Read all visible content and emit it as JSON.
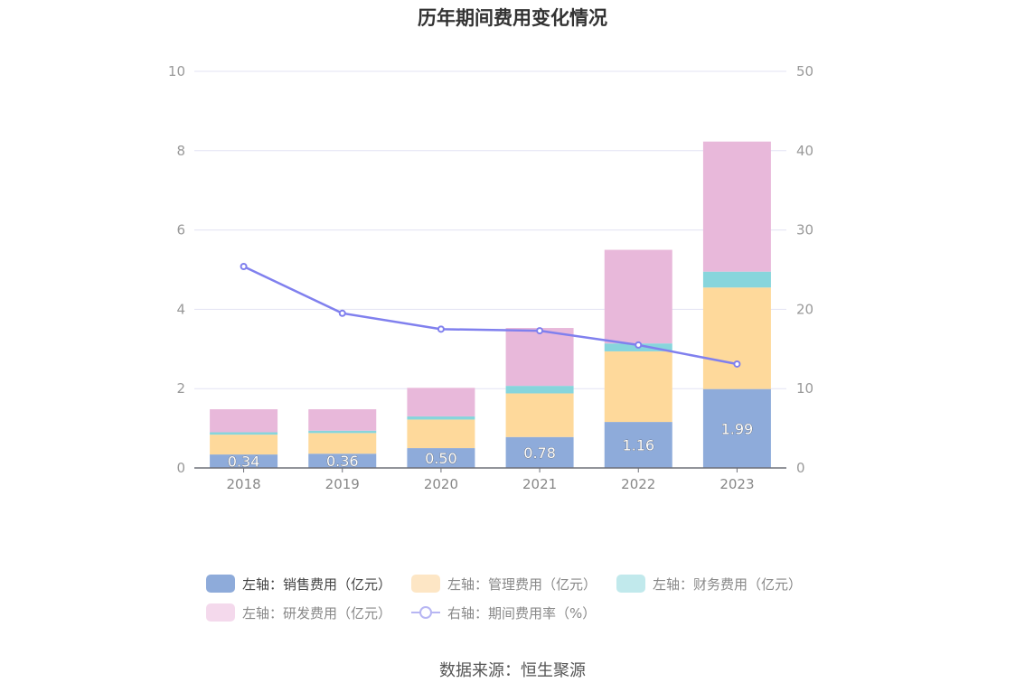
{
  "chart_data": {
    "type": "bar",
    "title": "历年期间费用变化情况",
    "categories": [
      "2018",
      "2019",
      "2020",
      "2021",
      "2022",
      "2023"
    ],
    "stacked": true,
    "series": [
      {
        "name": "左轴：销售费用（亿元）",
        "axis": "left",
        "color": "#8eabda",
        "values": [
          0.34,
          0.36,
          0.5,
          0.78,
          1.16,
          1.99
        ],
        "labels": [
          "0.34",
          "0.36",
          "0.50",
          "0.78",
          "1.16",
          "1.99"
        ]
      },
      {
        "name": "左轴：管理费用（亿元）",
        "axis": "left",
        "color": "#fed99b",
        "values": [
          0.5,
          0.52,
          0.72,
          1.1,
          1.78,
          2.56
        ]
      },
      {
        "name": "左轴：财务费用（亿元）",
        "axis": "left",
        "color": "#87d5dc",
        "values": [
          0.06,
          0.06,
          0.08,
          0.19,
          0.2,
          0.4
        ]
      },
      {
        "name": "左轴：研发费用（亿元）",
        "axis": "left",
        "color": "#e8b8da",
        "values": [
          0.58,
          0.54,
          0.72,
          1.46,
          2.36,
          3.28
        ]
      },
      {
        "name": "右轴：期间费用率（%）",
        "axis": "right",
        "type": "line",
        "color": "#8080ee",
        "values": [
          25.4,
          19.5,
          17.5,
          17.3,
          15.5,
          13.1
        ]
      }
    ],
    "yAxisLeft": {
      "min": 0,
      "max": 10,
      "ticks": [
        "0",
        "2",
        "4",
        "6",
        "8",
        "10"
      ]
    },
    "yAxisRight": {
      "min": 0,
      "max": 50,
      "ticks": [
        "0",
        "10",
        "20",
        "30",
        "40",
        "50"
      ]
    },
    "grid": true,
    "legend_position": "bottom"
  },
  "legend": {
    "items": [
      {
        "label": "左轴：销售费用（亿元）",
        "color": "#8eabda"
      },
      {
        "label": "左轴：管理费用（亿元）",
        "color": "#fde6c5"
      },
      {
        "label": "左轴：财务费用（亿元）",
        "color": "#c1e9ec"
      },
      {
        "label": "左轴：研发费用（亿元）",
        "color": "#f4d9ec"
      },
      {
        "label": "右轴：期间费用率（%）",
        "color": "#b7b6f3"
      }
    ]
  },
  "source": "数据来源：恒生聚源"
}
